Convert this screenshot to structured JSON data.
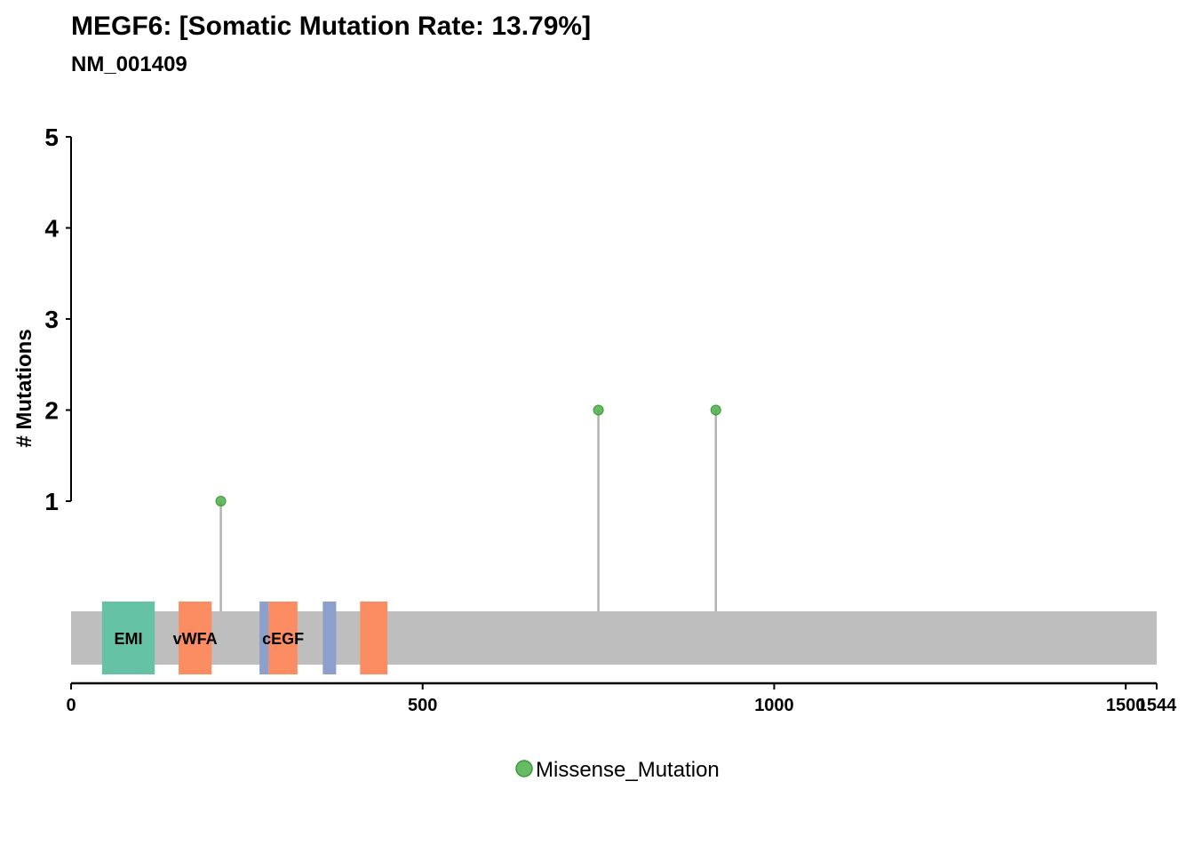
{
  "chart_data": {
    "type": "lollipop",
    "title": "MEGF6: [Somatic Mutation Rate: 13.79%]",
    "subtitle": "NM_001409",
    "ylabel": "# Mutations",
    "xlabel": "",
    "ylim": [
      0,
      5
    ],
    "yticks": [
      1,
      2,
      3,
      4,
      5
    ],
    "xlim": [
      0,
      1544
    ],
    "xticks": [
      0,
      500,
      1000,
      1500,
      1544
    ],
    "protein_length": 1544,
    "backbone_color": "#bebebe",
    "stem_color": "#b3b3b3",
    "mutations": [
      {
        "pos": 213,
        "count": 1,
        "type": "Missense_Mutation"
      },
      {
        "pos": 750,
        "count": 2,
        "type": "Missense_Mutation"
      },
      {
        "pos": 917,
        "count": 2,
        "type": "Missense_Mutation"
      }
    ],
    "domains": [
      {
        "label": "EMI",
        "start": 44,
        "end": 119,
        "color": "#66c2a5"
      },
      {
        "label": "vWFA",
        "start": 153,
        "end": 200,
        "color": "#fc8d62"
      },
      {
        "label": "",
        "start": 268,
        "end": 281,
        "color": "#8da0cb"
      },
      {
        "label": "cEGF",
        "start": 281,
        "end": 322,
        "color": "#fc8d62"
      },
      {
        "label": "",
        "start": 358,
        "end": 377,
        "color": "#8da0cb"
      },
      {
        "label": "",
        "start": 411,
        "end": 450,
        "color": "#fc8d62"
      }
    ],
    "legend": [
      {
        "name": "Missense_Mutation",
        "color": "#4daf4a"
      }
    ],
    "legend_position": "bottom",
    "grid": false
  }
}
